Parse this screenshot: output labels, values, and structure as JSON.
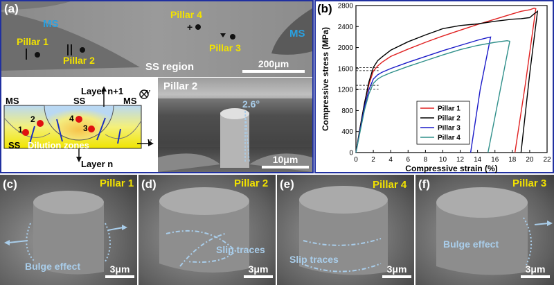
{
  "panel_a": {
    "label": "(a)",
    "region_ms_left": "MS",
    "region_ms_right": "MS",
    "region_ss": "SS region",
    "pillar1": "Pillar 1",
    "pillar2": "Pillar 2",
    "pillar3": "Pillar 3",
    "pillar4": "Pillar 4",
    "scale": "200μm"
  },
  "schematic": {
    "layer_top": "Layer n+1",
    "layer_bottom": "Layer n",
    "ms_left": "MS",
    "ss_center": "SS",
    "ms_right": "MS",
    "ss_left": "SS",
    "dilution": "Dilution zones",
    "v1": "v",
    "v2": "v",
    "n1": "1",
    "n2": "2",
    "n3": "3",
    "n4": "4"
  },
  "pillar2_inset": {
    "title": "Pillar 2",
    "angle": "2.6°",
    "scale": "10μm"
  },
  "panel_b": {
    "label": "(b)"
  },
  "chart_data": {
    "type": "line",
    "xlabel": "Compressive strain (%)",
    "ylabel": "Compressive stress (MPa)",
    "xlim": [
      0,
      22
    ],
    "ylim": [
      0,
      2800
    ],
    "xticks": [
      "0",
      "2",
      "4",
      "6",
      "8",
      "10",
      "12",
      "14",
      "16",
      "18",
      "20",
      "22"
    ],
    "yticks": [
      "0",
      "400",
      "800",
      "1200",
      "1600",
      "2000",
      "2400",
      "2800"
    ],
    "legend_position": "bottom-right",
    "reference_lines": [
      1620,
      1560,
      1280,
      1210
    ],
    "series": [
      {
        "name": "Pillar 1",
        "color": "#e02020",
        "x": [
          0,
          0.5,
          1,
          1.5,
          2,
          2.5,
          3,
          4,
          6,
          8,
          10,
          12,
          14,
          16,
          18,
          19,
          20,
          20.5,
          20.7,
          19.5,
          18.3
        ],
        "y": [
          0,
          500,
          950,
          1300,
          1550,
          1650,
          1720,
          1830,
          1970,
          2100,
          2220,
          2330,
          2440,
          2540,
          2640,
          2690,
          2720,
          2750,
          2740,
          1300,
          0
        ]
      },
      {
        "name": "Pillar 2",
        "color": "#000000",
        "x": [
          0,
          0.5,
          1,
          1.5,
          2,
          2.5,
          3,
          4,
          6,
          8,
          10,
          12,
          14,
          16,
          18,
          19,
          20,
          20.5,
          20.9,
          20,
          19
        ],
        "y": [
          0,
          500,
          950,
          1350,
          1620,
          1750,
          1820,
          1950,
          2110,
          2240,
          2360,
          2420,
          2450,
          2500,
          2540,
          2550,
          2570,
          2640,
          2690,
          1500,
          0
        ]
      },
      {
        "name": "Pillar 3",
        "color": "#1a1ac8",
        "x": [
          0,
          0.5,
          1,
          1.5,
          2,
          2.5,
          3,
          4,
          6,
          8,
          10,
          12,
          14,
          15.2,
          15.5,
          14.3,
          13.2
        ],
        "y": [
          0,
          450,
          880,
          1200,
          1400,
          1480,
          1530,
          1600,
          1720,
          1830,
          1940,
          2040,
          2140,
          2190,
          2200,
          1200,
          0
        ]
      },
      {
        "name": "Pillar 4",
        "color": "#2f8f8a",
        "x": [
          0,
          0.5,
          1,
          1.5,
          2,
          2.5,
          3,
          4,
          6,
          8,
          10,
          12,
          14,
          16,
          17.4,
          17.7,
          16.5,
          15.2
        ],
        "y": [
          0,
          420,
          820,
          1120,
          1320,
          1400,
          1450,
          1520,
          1640,
          1750,
          1860,
          1960,
          2040,
          2100,
          2130,
          2120,
          1100,
          0
        ]
      }
    ]
  },
  "panel_c": {
    "label": "(c)",
    "pillar": "Pillar 1",
    "annotation": "Bulge effect",
    "scale": "3μm"
  },
  "panel_d": {
    "label": "(d)",
    "pillar": "Pillar 2",
    "annotation": "Slip traces",
    "scale": "3μm"
  },
  "panel_e": {
    "label": "(e)",
    "pillar": "Pillar 4",
    "annotation": "Slip traces",
    "scale": "3μm"
  },
  "panel_f": {
    "label": "(f)",
    "pillar": "Pillar 3",
    "annotation": "Bulge effect",
    "scale": "3μm"
  }
}
